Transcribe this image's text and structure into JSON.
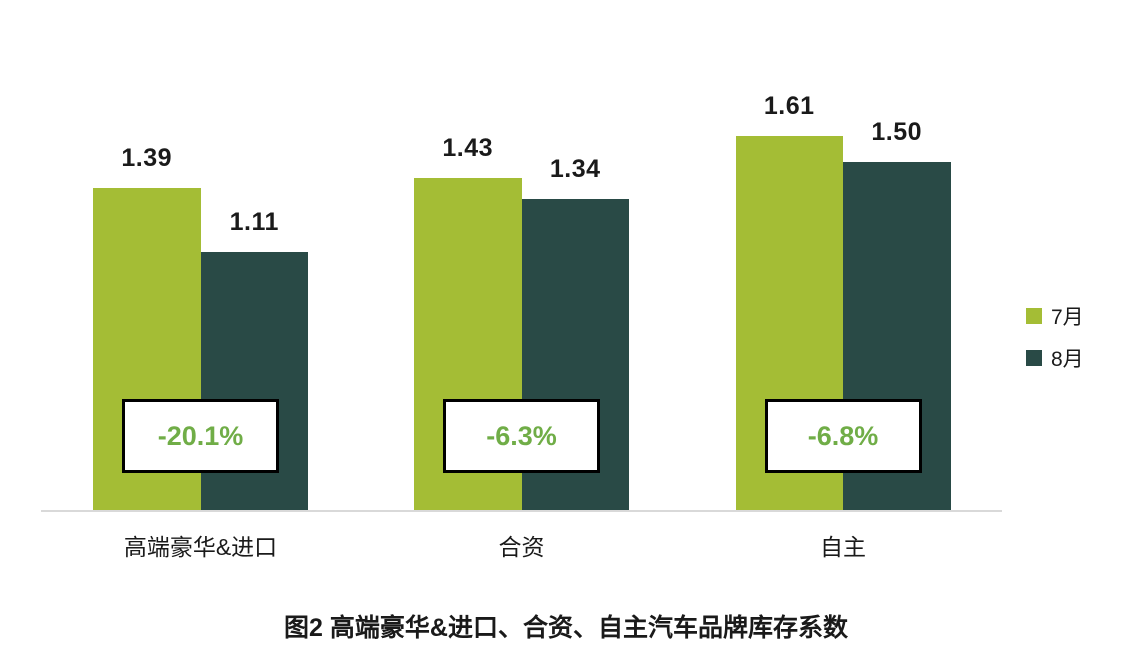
{
  "colors": {
    "july_green": "#a4bd35",
    "august_teal": "#294a46",
    "change_text_green": "#70ad47",
    "axis_line_gray": "#d9d9d9",
    "text_black": "#1a1a1a",
    "badge_border": "#000000",
    "badge_background": "#ffffff"
  },
  "chart_data": {
    "type": "bar",
    "categories": [
      "高端豪华&进口",
      "合资",
      "自主"
    ],
    "series": [
      {
        "name": "7月",
        "key": "july",
        "color": "#a4bd35",
        "values": [
          1.39,
          1.43,
          1.61
        ]
      },
      {
        "name": "8月",
        "key": "august",
        "color": "#294a46",
        "values": [
          1.11,
          1.34,
          1.5
        ]
      }
    ],
    "change_labels": [
      "-20.1%",
      "-6.3%",
      "-6.8%"
    ],
    "title": "图2 高端豪华&进口、合资、自主汽车品牌库存系数",
    "xlabel": "",
    "ylabel": "",
    "ylim": [
      0,
      2.2
    ],
    "grid": false,
    "legend_position": "right",
    "value_label_format": "2-decimals"
  },
  "legend": {
    "items": [
      {
        "label": "7月"
      },
      {
        "label": "8月"
      }
    ]
  },
  "caption": "图2 高端豪华&进口、合资、自主汽车品牌库存系数"
}
